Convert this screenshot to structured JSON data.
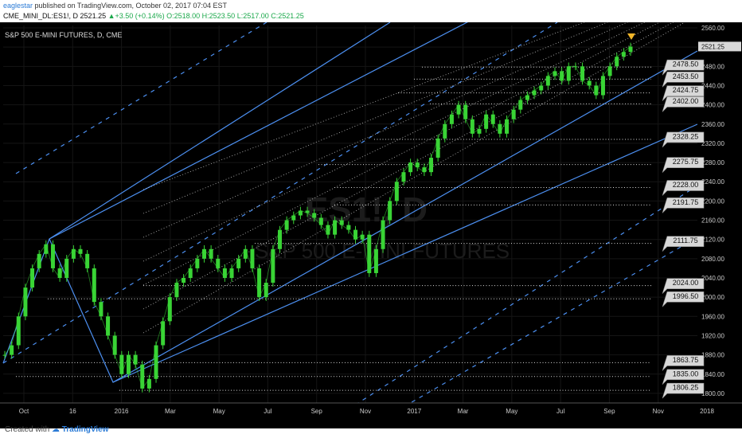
{
  "header": {
    "user": "eaglestar",
    "published_text": "published on TradingView.com, October 02, 2017 07:04 EST",
    "symbol": "CME_MINI_DL:ES1!, D",
    "last": "2521.25",
    "change": "+3.50 (+0.14%)",
    "open": "O:2518.00",
    "high": "H:2523.50",
    "low": "L:2517.00",
    "close": "C:2521.25"
  },
  "chart_title": "S&P 500 E-MINI FUTURES, D, CME",
  "watermark": {
    "line1": "ES1!, D",
    "line2": "S&P 500 E-MINI FUTURES"
  },
  "footer": {
    "prefix": "Created with",
    "brand": "TradingView"
  },
  "colors": {
    "background": "#000000",
    "candle": "#39d435",
    "channel": "#4c8ff0",
    "levels": "#d9d9d9",
    "axis_text": "#cccccc",
    "marker": "#f0b429"
  },
  "chart_data": {
    "type": "line",
    "title": "S&P 500 E-MINI FUTURES, D, CME",
    "x_tick_labels": [
      "Oct",
      "16",
      "2016",
      "Mar",
      "May",
      "Jul",
      "Sep",
      "Nov",
      "2017",
      "Mar",
      "May",
      "Jul",
      "Sep",
      "Nov",
      "2018"
    ],
    "y_tick_labels": [
      "1800.00",
      "1840.00",
      "1880.00",
      "1920.00",
      "1960.00",
      "2000.00",
      "2040.00",
      "2080.00",
      "2120.00",
      "2160.00",
      "2200.00",
      "2240.00",
      "2280.00",
      "2320.00",
      "2360.00",
      "2400.00",
      "2440.00",
      "2480.00",
      "2520.00",
      "2560.00"
    ],
    "ylim": [
      1780,
      2565
    ],
    "current_price": "2521.25",
    "price_levels": [
      "2478.50",
      "2453.50",
      "2424.75",
      "2402.00",
      "2328.25",
      "2275.75",
      "2228.00",
      "2191.75",
      "2111.75",
      "2024.00",
      "1996.50",
      "1863.75",
      "1835.00",
      "1806.25"
    ],
    "series": [
      {
        "values": [
          1880,
          1900,
          1960,
          2020,
          2060,
          2090,
          2110,
          2060,
          2040,
          2080,
          2100,
          2090,
          2060,
          1990,
          1960,
          1920,
          1880,
          1840,
          1880,
          1860,
          1810,
          1830,
          1900,
          1950,
          2000,
          2030,
          2040,
          2060,
          2080,
          2100,
          2080,
          2060,
          2040,
          2060,
          2080,
          2100,
          2060,
          2000,
          2030,
          2100,
          2140,
          2160,
          2170,
          2180,
          2175,
          2165,
          2150,
          2130,
          2160,
          2150,
          2140,
          2120,
          2130,
          2050,
          2100,
          2160,
          2200,
          2240,
          2260,
          2280,
          2270,
          2260,
          2290,
          2330,
          2360,
          2380,
          2400,
          2370,
          2340,
          2350,
          2380,
          2360,
          2340,
          2370,
          2390,
          2410,
          2420,
          2430,
          2440,
          2460,
          2470,
          2450,
          2480,
          2480,
          2450,
          2440,
          2420,
          2460,
          2480,
          2500,
          2510,
          2521.25
        ]
      }
    ]
  }
}
